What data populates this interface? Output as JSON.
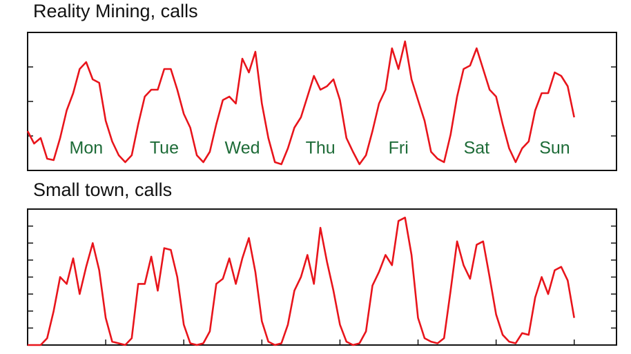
{
  "chart_data": [
    {
      "type": "line",
      "title": "Reality Mining, calls",
      "day_labels": [
        "Mon",
        "Tue",
        "Wed",
        "Thu",
        "Fri",
        "Sat",
        "Sun"
      ],
      "label_color": "#1d6b37",
      "x": [
        0,
        2,
        4,
        6,
        8,
        10,
        12,
        14,
        16,
        18,
        20,
        22,
        24,
        26,
        28,
        30,
        32,
        34,
        36,
        38,
        40,
        42,
        44,
        46,
        48,
        50,
        52,
        54,
        56,
        58,
        60,
        62,
        64,
        66,
        68,
        70,
        72,
        74,
        76,
        78,
        80,
        82,
        84,
        86,
        88,
        90,
        92,
        94,
        96,
        98,
        100,
        102,
        104,
        106,
        108,
        110,
        112,
        114,
        116,
        118,
        120,
        122,
        124,
        126,
        128,
        130,
        132,
        134,
        136,
        138,
        140,
        142,
        144,
        146,
        148,
        150,
        152,
        154,
        156,
        158,
        160,
        162,
        164,
        166,
        168
      ],
      "series": [
        {
          "color": "#e8141b",
          "values": [
            1.14,
            0.78,
            0.94,
            0.34,
            0.3,
            0.94,
            1.74,
            2.24,
            2.94,
            3.14,
            2.64,
            2.54,
            1.44,
            0.84,
            0.44,
            0.24,
            0.44,
            1.34,
            2.14,
            2.34,
            2.34,
            2.94,
            2.94,
            2.34,
            1.64,
            1.24,
            0.44,
            0.24,
            0.54,
            1.34,
            2.04,
            2.14,
            1.94,
            3.24,
            2.84,
            3.44,
            1.94,
            0.94,
            0.24,
            0.18,
            0.64,
            1.24,
            1.54,
            2.14,
            2.74,
            2.34,
            2.44,
            2.64,
            2.04,
            0.94,
            0.54,
            0.18,
            0.44,
            1.14,
            1.94,
            2.34,
            3.54,
            2.94,
            3.74,
            2.64,
            2.04,
            1.44,
            0.54,
            0.34,
            0.24,
            1.04,
            2.14,
            2.94,
            3.04,
            3.54,
            2.94,
            2.34,
            2.14,
            1.34,
            0.64,
            0.24,
            0.64,
            0.84,
            1.74,
            2.24,
            2.24,
            2.84,
            2.74,
            2.44,
            1.54
          ]
        }
      ],
      "xlim": [
        0,
        181
      ],
      "ylim": [
        0,
        4
      ],
      "yticks": [
        1,
        2,
        3
      ]
    },
    {
      "type": "line",
      "title": "Small town, calls",
      "x": [
        0,
        2,
        4,
        6,
        8,
        10,
        12,
        14,
        16,
        18,
        20,
        22,
        24,
        26,
        28,
        30,
        32,
        34,
        36,
        38,
        40,
        42,
        44,
        46,
        48,
        50,
        52,
        54,
        56,
        58,
        60,
        62,
        64,
        66,
        68,
        70,
        72,
        74,
        76,
        78,
        80,
        82,
        84,
        86,
        88,
        90,
        92,
        94,
        96,
        98,
        100,
        102,
        104,
        106,
        108,
        110,
        112,
        114,
        116,
        118,
        120,
        122,
        124,
        126,
        128,
        130,
        132,
        134,
        136,
        138,
        140,
        142,
        144,
        146,
        148,
        150,
        152,
        154,
        156,
        158,
        160,
        162,
        164,
        166,
        168
      ],
      "series": [
        {
          "color": "#e8141b",
          "values": [
            0,
            0,
            0,
            0.4,
            2.0,
            4.0,
            3.6,
            5.1,
            3.0,
            4.6,
            6.0,
            4.4,
            1.6,
            0.2,
            0.1,
            0,
            0.4,
            3.6,
            3.6,
            5.2,
            3.2,
            5.7,
            5.6,
            4.0,
            1.2,
            0.1,
            0,
            0.1,
            0.8,
            3.6,
            3.9,
            5.1,
            3.6,
            5.1,
            6.3,
            4.3,
            1.4,
            0.2,
            0,
            0.1,
            1.2,
            3.2,
            4.0,
            5.3,
            3.6,
            6.9,
            4.9,
            3.2,
            1.2,
            0.2,
            0,
            0.1,
            0.8,
            3.5,
            4.3,
            5.3,
            4.7,
            7.3,
            7.5,
            5.3,
            1.6,
            0.4,
            0.2,
            0.1,
            0.4,
            3.2,
            6.1,
            4.7,
            3.9,
            5.9,
            6.1,
            4.0,
            1.8,
            0.6,
            0.2,
            0.1,
            0.7,
            0.6,
            2.8,
            4.0,
            3.0,
            4.4,
            4.6,
            3.8,
            1.6
          ]
        }
      ],
      "xlim": [
        0,
        181
      ],
      "ylim": [
        0,
        8
      ],
      "yticks": [
        1,
        2,
        3,
        4,
        5,
        6,
        7
      ],
      "xticks": [
        24,
        48,
        72,
        96,
        120,
        144,
        168
      ]
    }
  ]
}
